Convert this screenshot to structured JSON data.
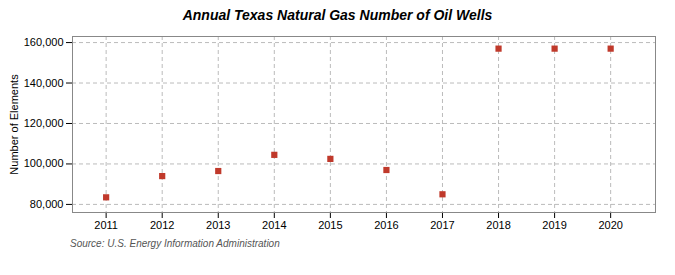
{
  "chart_data": {
    "type": "scatter",
    "title": "Annual Texas Natural Gas Number of Oil Wells",
    "ylabel": "Number of Elements",
    "caption": "Source: U.S. Energy Information Administration",
    "x": [
      2011,
      2012,
      2013,
      2014,
      2015,
      2016,
      2017,
      2018,
      2019,
      2020
    ],
    "values": [
      83500,
      94000,
      96500,
      104500,
      102500,
      97000,
      85000,
      157000,
      157000,
      157000
    ],
    "color": "#c0392b",
    "marker": "square",
    "xlim": [
      2010.4,
      2020.8
    ],
    "xticks": [
      2011,
      2012,
      2013,
      2014,
      2015,
      2016,
      2017,
      2018,
      2019,
      2020
    ],
    "ylim": [
      76000,
      163000
    ],
    "yticks": [
      {
        "value": 80000,
        "label": "80,000"
      },
      {
        "value": 100000,
        "label": "100,000"
      },
      {
        "value": 120000,
        "label": "120,000"
      },
      {
        "value": 140000,
        "label": "140,000"
      },
      {
        "value": 160000,
        "label": "160,000"
      }
    ],
    "grid": true
  }
}
